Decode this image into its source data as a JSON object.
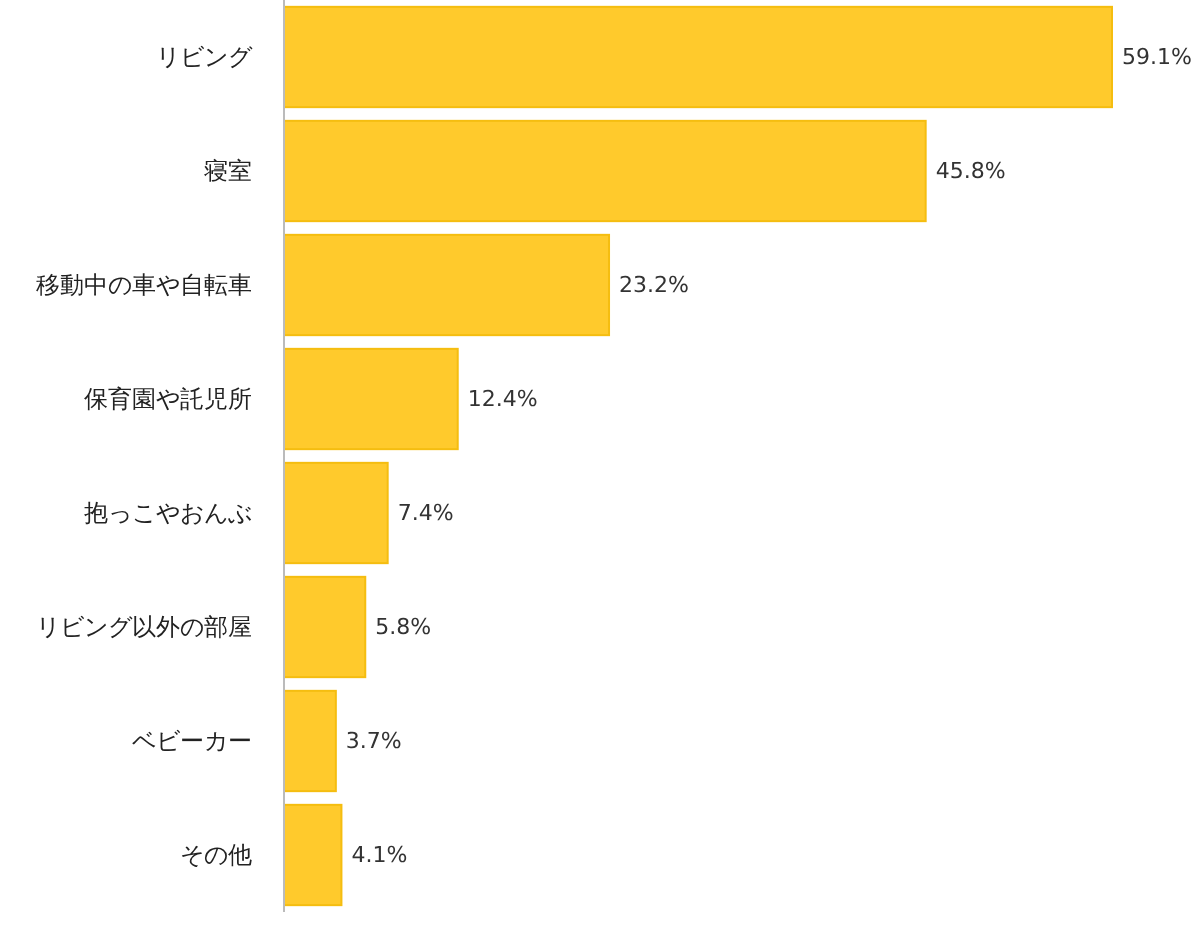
{
  "chart_data": {
    "type": "bar",
    "orientation": "horizontal",
    "relative": false,
    "categories": [
      "リビング",
      "寝室",
      "移動中の車や自転車",
      "保育園や託児所",
      "抱っこやおんぶ",
      "リビング以外の部屋",
      "ベビーカー",
      "その他"
    ],
    "values": [
      59.1,
      45.8,
      23.2,
      12.4,
      7.4,
      5.8,
      3.7,
      4.1
    ],
    "value_labels": [
      "59.1%",
      "45.8%",
      "23.2%",
      "12.4%",
      "7.4%",
      "5.8%",
      "3.7%",
      "4.1%"
    ],
    "color": "#ffca2c"
  }
}
